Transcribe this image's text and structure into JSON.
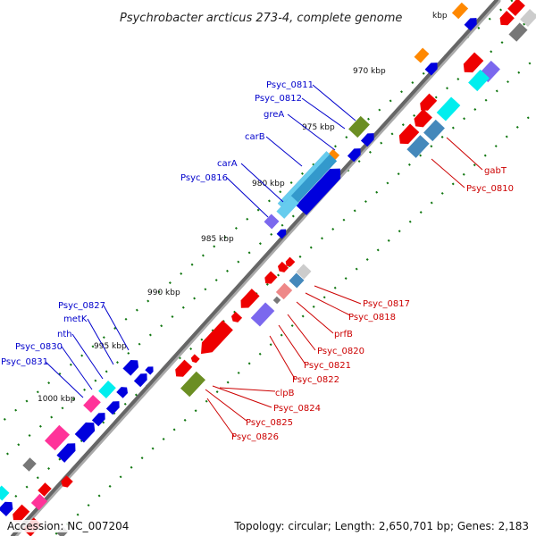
{
  "title": "Psychrobacter arcticus 273-4, complete genome",
  "accession_text": "Accession: NC_007204",
  "topology_text": "Topology: circular; Length: 2,650,701 bp; Genes: 2,183",
  "kbp_labels": [
    "970 kbp",
    "975 kbp",
    "980 kbp",
    "985 kbp",
    "990 kbp",
    "995 kbp",
    "1000 kbp",
    "kbp"
  ],
  "blue_labels": [
    "Psyc_0811",
    "Psyc_0812",
    "greA",
    "carB",
    "carA",
    "Psyc_0816",
    "Psyc_0827",
    "metK",
    "nth",
    "Psyc_0830",
    "Psyc_0831"
  ],
  "red_labels": [
    "gabT",
    "Psyc_0810",
    "Psyc_0817",
    "Psyc_0818",
    "prfB",
    "Psyc_0820",
    "Psyc_0821",
    "Psyc_0822",
    "clpB",
    "Psyc_0824",
    "Psyc_0825",
    "Psyc_0826"
  ],
  "colors": {
    "backbone": "#808080",
    "forward_cds": "#0000dd",
    "reverse_cds": "#ee0000",
    "blue_label": "#0000cc",
    "red_label": "#cc0000",
    "tick": "#117711"
  }
}
